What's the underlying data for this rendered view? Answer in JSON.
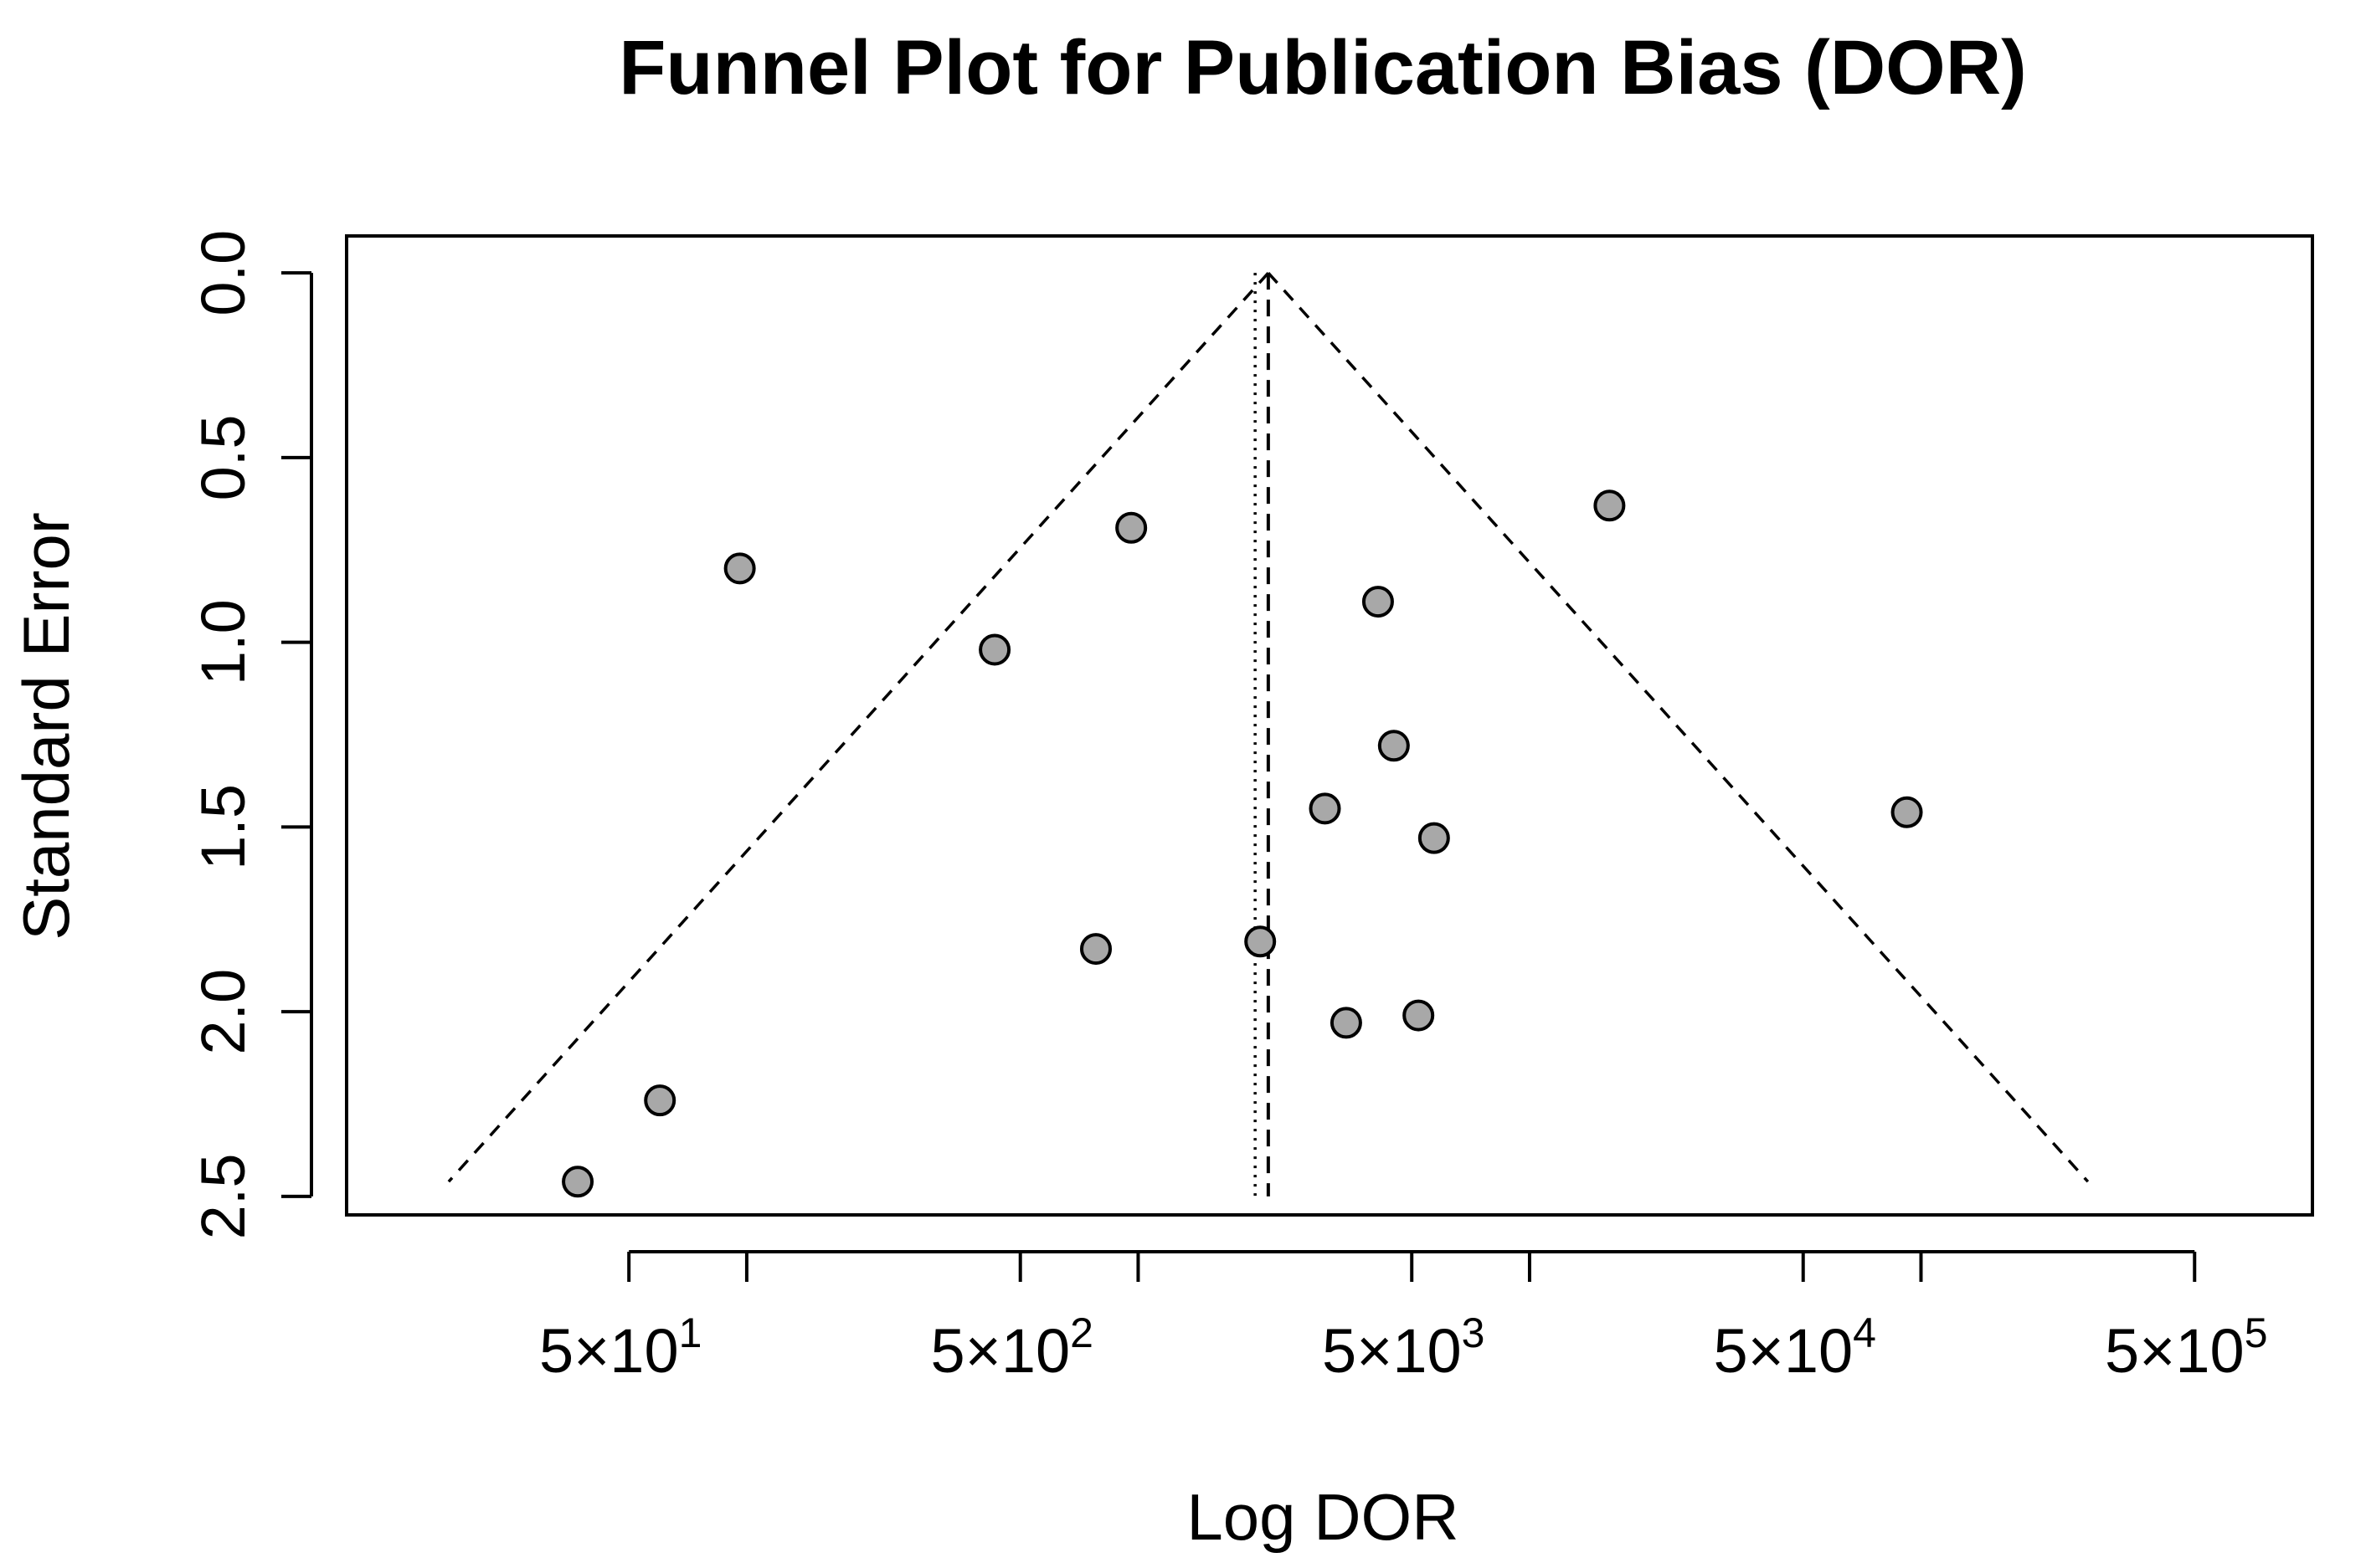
{
  "chart_data": {
    "type": "scatter",
    "title": "Funnel Plot for Publication Bias (DOR)",
    "xlabel": "Log DOR",
    "ylabel": "Standard Error",
    "x_scale": "log10",
    "xlim": [
      9.5,
      1000000
    ],
    "ylim": [
      2.55,
      -0.1
    ],
    "y_reversed": true,
    "x_ticks": [
      {
        "value": 50,
        "mantissa": "5",
        "exponent": "1"
      },
      {
        "value": 500,
        "mantissa": "5",
        "exponent": "2"
      },
      {
        "value": 5000,
        "mantissa": "5",
        "exponent": "3"
      },
      {
        "value": 50000,
        "mantissa": "5",
        "exponent": "4"
      },
      {
        "value": 500000,
        "mantissa": "5",
        "exponent": "5"
      }
    ],
    "x_minor_ticks": [
      100,
      1000,
      10000,
      100000
    ],
    "y_ticks": [
      "0.0",
      "0.5",
      "1.0",
      "1.5",
      "2.0",
      "2.5"
    ],
    "center_estimate": 2150,
    "observed_mean": 1990,
    "funnel_max_se": 2.46,
    "points": [
      {
        "x": 37,
        "y": 2.46
      },
      {
        "x": 60,
        "y": 2.24
      },
      {
        "x": 96,
        "y": 0.8
      },
      {
        "x": 430,
        "y": 1.02
      },
      {
        "x": 780,
        "y": 1.83
      },
      {
        "x": 960,
        "y": 0.69
      },
      {
        "x": 2050,
        "y": 1.81
      },
      {
        "x": 3000,
        "y": 1.45
      },
      {
        "x": 3400,
        "y": 2.03
      },
      {
        "x": 4100,
        "y": 0.89
      },
      {
        "x": 4500,
        "y": 1.28
      },
      {
        "x": 5200,
        "y": 2.01
      },
      {
        "x": 5700,
        "y": 1.53
      },
      {
        "x": 16000,
        "y": 0.63
      },
      {
        "x": 92000,
        "y": 1.46
      }
    ],
    "grid": false,
    "colors": {
      "point_fill": "#a8a8a8",
      "point_stroke": "#000000",
      "line": "#000000"
    }
  }
}
